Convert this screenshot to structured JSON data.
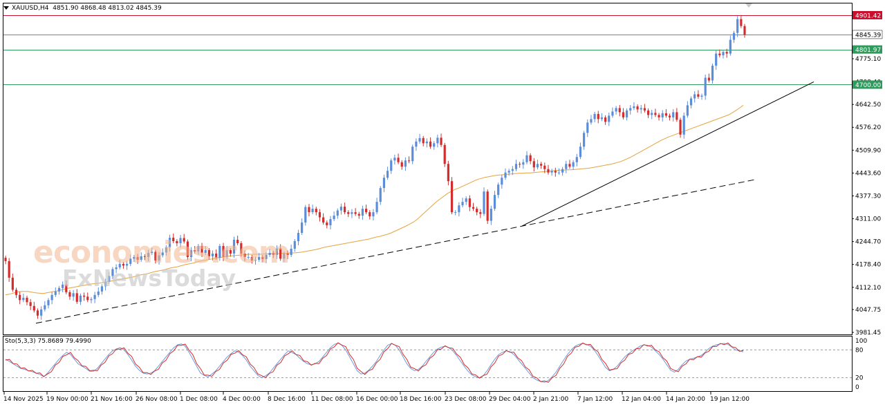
{
  "header": {
    "symbol": "XAUUSD,H4",
    "ohlc": "4851.90 4868.48 4813.02 4845.39"
  },
  "stochastic": {
    "label": "Sto(5,3,3) 75.8689 79.4990",
    "k_value": 75.8689,
    "d_value": 79.499,
    "axis_ticks": [
      "100",
      "80",
      "20",
      "0"
    ],
    "levels": [
      80,
      20
    ],
    "range": [
      0,
      100
    ]
  },
  "watermark": {
    "line1": "economies.com",
    "line2": "FxNewsToday"
  },
  "price_labels": {
    "red": "4901.42",
    "gray": "4845.39",
    "green1": "4801.97",
    "green2": "4700.00"
  },
  "colors": {
    "bull": "#5b8dd9",
    "bear": "#d22c2c",
    "ma": "#e6a23c",
    "resistance_line": "#c8102e",
    "support_line": "#2e9a5c",
    "current_price": "#808080",
    "trendline": "#000000"
  },
  "chart_data": {
    "type": "candlestick",
    "symbol": "XAUUSD",
    "timeframe": "H4",
    "y_ticks": [
      "4775.10",
      "4708.40",
      "4642.50",
      "4576.20",
      "4509.90",
      "4443.60",
      "4377.30",
      "4311.00",
      "4244.70",
      "4178.40",
      "4112.10",
      "4047.75",
      "3981.45"
    ],
    "x_ticks": [
      "14 Nov 2025",
      "19 Nov 00:00",
      "21 Nov 16:00",
      "26 Nov 08:00",
      "1 Dec 08:00",
      "4 Dec 00:00",
      "8 Dec 16:00",
      "11 Dec 08:00",
      "16 Dec 00:00",
      "18 Dec 16:00",
      "23 Dec 08:00",
      "29 Dec 04:00",
      "2 Jan 21:00",
      "7 Jan 12:00",
      "12 Jan 04:00",
      "14 Jan 20:00",
      "19 Jan 12:00"
    ],
    "ylim": [
      3962,
      4930
    ],
    "horizontal_levels": [
      {
        "value": 4901.42,
        "kind": "resistance"
      },
      {
        "value": 4845.39,
        "kind": "current"
      },
      {
        "value": 4801.97,
        "kind": "support"
      },
      {
        "value": 4700.0,
        "kind": "support"
      }
    ],
    "closes": [
      4188,
      4140,
      4105,
      4090,
      4075,
      4082,
      4069,
      4058,
      4045,
      4030,
      4048,
      4060,
      4075,
      4090,
      4100,
      4110,
      4120,
      4098,
      4085,
      4095,
      4070,
      4088,
      4085,
      4075,
      4078,
      4090,
      4100,
      4115,
      4128,
      4145,
      4165,
      4170,
      4180,
      4175,
      4180,
      4195,
      4200,
      4192,
      4202,
      4200,
      4212,
      4215,
      4190,
      4205,
      4213,
      4228,
      4256,
      4246,
      4240,
      4255,
      4245,
      4200,
      4220,
      4216,
      4232,
      4212,
      4220,
      4202,
      4210,
      4198,
      4232,
      4200,
      4220,
      4210,
      4250,
      4240,
      4210,
      4200,
      4200,
      4190,
      4192,
      4200,
      4194,
      4206,
      4212,
      4206,
      4225,
      4195,
      4210,
      4206,
      4224,
      4246,
      4270,
      4300,
      4345,
      4330,
      4340,
      4330,
      4315,
      4300,
      4292,
      4310,
      4320,
      4335,
      4346,
      4330,
      4325,
      4330,
      4325,
      4320,
      4340,
      4330,
      4318,
      4330,
      4360,
      4400,
      4430,
      4450,
      4480,
      4488,
      4475,
      4462,
      4480,
      4478,
      4520,
      4535,
      4545,
      4530,
      4535,
      4520,
      4530,
      4546,
      4525,
      4470,
      4420,
      4330,
      4330,
      4350,
      4360,
      4370,
      4345,
      4340,
      4330,
      4325,
      4390,
      4305,
      4340,
      4380,
      4410,
      4430,
      4445,
      4450,
      4455,
      4470,
      4468,
      4475,
      4495,
      4478,
      4460,
      4470,
      4465,
      4455,
      4445,
      4450,
      4445,
      4445,
      4455,
      4470,
      4462,
      4475,
      4490,
      4520,
      4560,
      4590,
      4600,
      4615,
      4600,
      4605,
      4592,
      4610,
      4622,
      4632,
      4620,
      4605,
      4625,
      4632,
      4637,
      4628,
      4632,
      4625,
      4612,
      4618,
      4612,
      4605,
      4617,
      4610,
      4605,
      4620,
      4598,
      4555,
      4610,
      4640,
      4660,
      4672,
      4665,
      4668,
      4720,
      4712,
      4755,
      4790,
      4785,
      4795,
      4790,
      4830,
      4850,
      4890,
      4870,
      4845
    ],
    "ma_values": [
      4090,
      4092,
      4095,
      4098,
      4100,
      4100,
      4100,
      4098,
      4096,
      4095,
      4094,
      4096,
      4098,
      4100,
      4102,
      4105,
      4108,
      4110,
      4112,
      4114,
      4116,
      4118,
      4120,
      4122,
      4123,
      4124,
      4126,
      4128,
      4130,
      4132,
      4134,
      4136,
      4138,
      4140,
      4142,
      4145,
      4148,
      4150,
      4152,
      4155,
      4158,
      4160,
      4162,
      4165,
      4168,
      4170,
      4172,
      4175,
      4178,
      4180,
      4182,
      4185,
      4188,
      4190,
      4192,
      4194,
      4196,
      4198,
      4200,
      4202,
      4203,
      4204,
      4205,
      4206,
      4207,
      4208,
      4208,
      4208,
      4208,
      4209,
      4209,
      4210,
      4210,
      4210,
      4211,
      4211,
      4212,
      4212,
      4213,
      4214,
      4216,
      4218,
      4220,
      4222,
      4225,
      4228,
      4230,
      4232,
      4234,
      4236,
      4238,
      4240,
      4242,
      4244,
      4246,
      4248,
      4250,
      4252,
      4255,
      4258,
      4260,
      4263,
      4266,
      4270,
      4275,
      4280,
      4285,
      4290,
      4296,
      4302,
      4310,
      4320,
      4330,
      4340,
      4350,
      4360,
      4368,
      4376,
      4384,
      4390,
      4396,
      4400,
      4405,
      4410,
      4415,
      4420,
      4425,
      4428,
      4431,
      4433,
      4435,
      4437,
      4438,
      4439,
      4440,
      4441,
      4442,
      4443,
      4443,
      4444,
      4444,
      4445,
      4446,
      4447,
      4448,
      4449,
      4450,
      4451,
      4452,
      4452,
      4453,
      4453,
      4454,
      4455,
      4456,
      4457,
      4458,
      4460,
      4462,
      4464,
      4466,
      4468,
      4470,
      4473,
      4476,
      4480,
      4485,
      4490,
      4496,
      4502,
      4508,
      4514,
      4520,
      4526,
      4532,
      4538,
      4543,
      4548,
      4552,
      4556,
      4560,
      4564,
      4568,
      4572,
      4576,
      4580,
      4584,
      4588,
      4592,
      4596,
      4600,
      4604,
      4608,
      4612,
      4618,
      4625,
      4632,
      4640
    ],
    "sto_values": [
      60,
      55,
      50,
      45,
      40,
      38,
      35,
      33,
      30,
      27,
      22,
      30,
      40,
      50,
      60,
      68,
      75,
      70,
      60,
      50,
      45,
      40,
      34,
      34,
      40,
      50,
      60,
      70,
      78,
      82,
      85,
      80,
      70,
      58,
      45,
      36,
      30,
      28,
      30,
      35,
      45,
      55,
      65,
      75,
      85,
      91,
      93,
      88,
      75,
      60,
      45,
      30,
      25,
      22,
      28,
      35,
      45,
      55,
      65,
      72,
      78,
      75,
      68,
      58,
      45,
      35,
      25,
      20,
      24,
      30,
      40,
      50,
      60,
      70,
      78,
      74,
      70,
      62,
      55,
      50,
      48,
      50,
      55,
      65,
      75,
      85,
      92,
      95,
      90,
      80,
      65,
      50,
      35,
      28,
      30,
      36,
      45,
      55,
      68,
      80,
      90,
      94,
      90,
      80,
      65,
      50,
      40,
      35,
      38,
      45,
      55,
      65,
      75,
      82,
      86,
      88,
      85,
      78,
      68,
      56,
      45,
      34,
      26,
      22,
      20,
      25,
      35,
      48,
      60,
      70,
      75,
      78,
      76,
      70,
      60,
      50,
      40,
      30,
      20,
      15,
      12,
      10,
      14,
      22,
      32,
      45,
      58,
      70,
      80,
      88,
      92,
      94,
      92,
      88,
      80,
      68,
      55,
      42,
      35,
      38,
      45,
      55,
      65,
      72,
      78,
      83,
      88,
      91,
      90,
      86,
      78,
      70,
      60,
      48,
      36,
      32,
      38,
      48,
      56,
      60,
      62,
      65,
      68,
      75,
      83,
      88,
      91,
      93,
      94,
      92,
      86,
      80,
      78,
      76
    ]
  }
}
